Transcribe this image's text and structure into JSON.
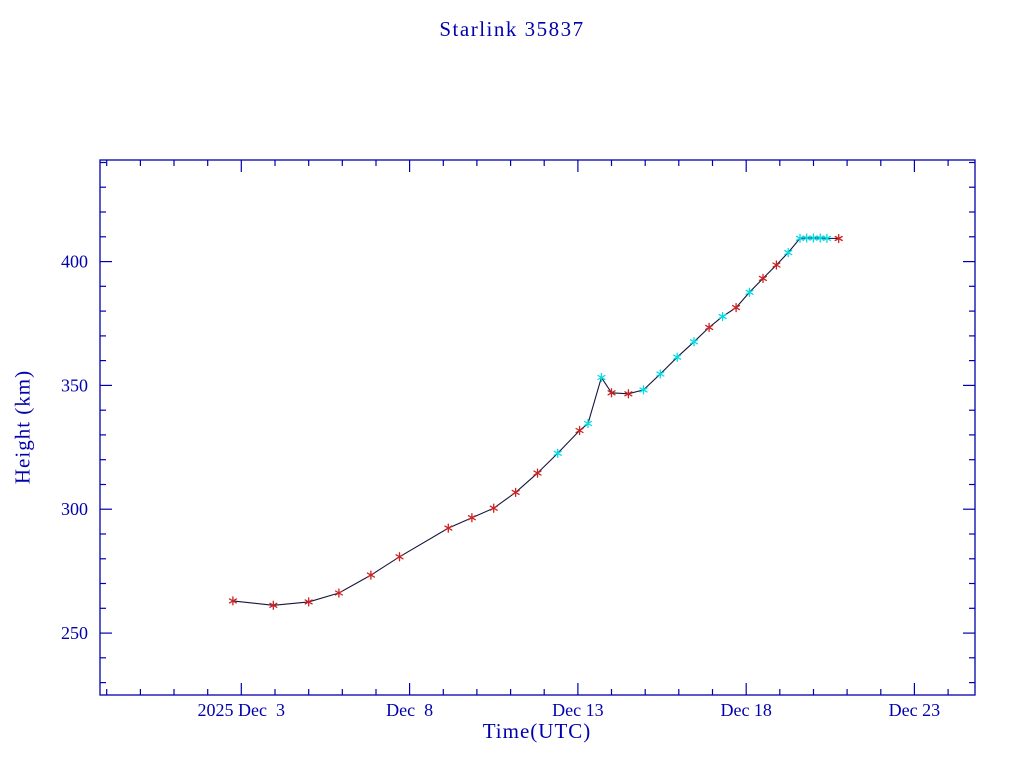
{
  "window": {
    "background": "#ffffff"
  },
  "chart_data": {
    "type": "line",
    "title": "Starlink 35837",
    "xlabel": "Time(UTC)",
    "ylabel": "Height (km)",
    "x_unit": "day of December 2025 (UTC)",
    "y_unit": "km",
    "xlim": [
      -1.2,
      24.8
    ],
    "ylim": [
      225,
      441
    ],
    "grid": false,
    "legend": null,
    "x_major_ticks": [
      {
        "value": 3,
        "label": "2025 Dec  3"
      },
      {
        "value": 8,
        "label": "Dec  8"
      },
      {
        "value": 13,
        "label": "Dec 13"
      },
      {
        "value": 18,
        "label": "Dec 18"
      },
      {
        "value": 23,
        "label": "Dec 23"
      }
    ],
    "x_minor_step": 1,
    "y_major_ticks": [
      250,
      300,
      350,
      400
    ],
    "y_minor_step": 10,
    "colors": {
      "axis": "#0000ae",
      "text": "#0000ae",
      "line": "#16163e",
      "red_marker": "#cc2222",
      "cyan_marker": "#00dde8"
    },
    "marker_style": "asterisk",
    "series": [
      {
        "name": "height",
        "points": [
          [
            2.75,
            263.0,
            "red"
          ],
          [
            3.95,
            261.2,
            "red"
          ],
          [
            5.0,
            262.6,
            "red"
          ],
          [
            5.9,
            266.2,
            "red"
          ],
          [
            6.85,
            273.4,
            "red"
          ],
          [
            7.7,
            280.8,
            "red"
          ],
          [
            9.15,
            292.4,
            "red"
          ],
          [
            9.85,
            296.6,
            "red"
          ],
          [
            10.5,
            300.4,
            "red"
          ],
          [
            11.15,
            306.8,
            "red"
          ],
          [
            11.8,
            314.6,
            "red"
          ],
          [
            12.4,
            322.6,
            "cyan"
          ],
          [
            13.05,
            331.8,
            "red"
          ],
          [
            13.3,
            334.6,
            "cyan"
          ],
          [
            13.7,
            353.2,
            "cyan"
          ],
          [
            14.0,
            347.0,
            "red"
          ],
          [
            14.5,
            346.6,
            "red"
          ],
          [
            14.95,
            348.2,
            "cyan"
          ],
          [
            15.45,
            354.6,
            "cyan"
          ],
          [
            15.95,
            361.4,
            "cyan"
          ],
          [
            16.45,
            367.6,
            "cyan"
          ],
          [
            16.9,
            373.4,
            "red"
          ],
          [
            17.3,
            377.8,
            "cyan"
          ],
          [
            17.7,
            381.4,
            "red"
          ],
          [
            18.1,
            387.6,
            "cyan"
          ],
          [
            18.5,
            393.2,
            "red"
          ],
          [
            18.9,
            398.6,
            "red"
          ],
          [
            19.25,
            403.6,
            "cyan"
          ],
          [
            19.6,
            409.4,
            "cyan"
          ],
          [
            19.8,
            409.5,
            "cyan"
          ],
          [
            20.0,
            409.5,
            "cyan"
          ],
          [
            20.2,
            409.5,
            "cyan"
          ],
          [
            20.4,
            409.4,
            "cyan"
          ],
          [
            20.75,
            409.3,
            "red"
          ]
        ]
      }
    ]
  }
}
